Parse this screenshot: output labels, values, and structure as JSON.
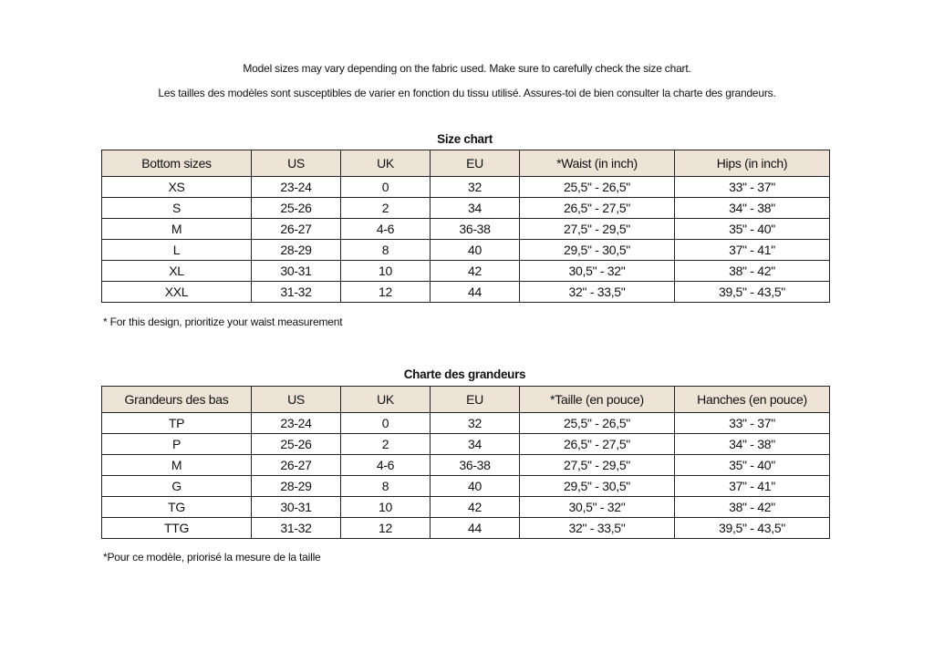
{
  "notes": {
    "en": "Model sizes may vary depending on the fabric used. Make sure to carefully check the size chart.",
    "fr": "Les tailles des modèles sont susceptibles de varier en fonction du tissu utilisé. Assures-toi de bien consulter la charte des grandeurs."
  },
  "colors": {
    "header_bg": "#ede4d7",
    "border": "#222222"
  },
  "tables": [
    {
      "title": "Size chart",
      "headers": [
        "Bottom sizes",
        "US",
        "UK",
        "EU",
        "*Waist (in inch)",
        "Hips (in inch)"
      ],
      "rows": [
        [
          "XS",
          "23-24",
          "0",
          "32",
          "25,5\" - 26,5\"",
          "33\" - 37\""
        ],
        [
          "S",
          "25-26",
          "2",
          "34",
          "26,5\" - 27,5\"",
          "34\" - 38\""
        ],
        [
          "M",
          "26-27",
          "4-6",
          "36-38",
          "27,5\" - 29,5\"",
          "35\" - 40\""
        ],
        [
          "L",
          "28-29",
          "8",
          "40",
          "29,5\" - 30,5\"",
          "37\" - 41\""
        ],
        [
          "XL",
          "30-31",
          "10",
          "42",
          "30,5\" - 32\"",
          "38\" - 42\""
        ],
        [
          "XXL",
          "31-32",
          "12",
          "44",
          "32\" - 33,5\"",
          "39,5\" - 43,5\""
        ]
      ],
      "footnote": "* For this design, prioritize your waist measurement"
    },
    {
      "title": "Charte des grandeurs",
      "headers": [
        "Grandeurs des bas",
        "US",
        "UK",
        "EU",
        "*Taille (en pouce)",
        "Hanches (en pouce)"
      ],
      "rows": [
        [
          "TP",
          "23-24",
          "0",
          "32",
          "25,5\" - 26,5\"",
          "33\" - 37\""
        ],
        [
          "P",
          "25-26",
          "2",
          "34",
          "26,5\" - 27,5\"",
          "34\" - 38\""
        ],
        [
          "M",
          "26-27",
          "4-6",
          "36-38",
          "27,5\" - 29,5\"",
          "35\" - 40\""
        ],
        [
          "G",
          "28-29",
          "8",
          "40",
          "29,5\" - 30,5\"",
          "37\" - 41\""
        ],
        [
          "TG",
          "30-31",
          "10",
          "42",
          "30,5\" - 32\"",
          "38\" - 42\""
        ],
        [
          "TTG",
          "31-32",
          "12",
          "44",
          "32\" - 33,5\"",
          "39,5\" - 43,5\""
        ]
      ],
      "footnote": "*Pour ce modèle, priorisé la mesure de la taille"
    }
  ]
}
